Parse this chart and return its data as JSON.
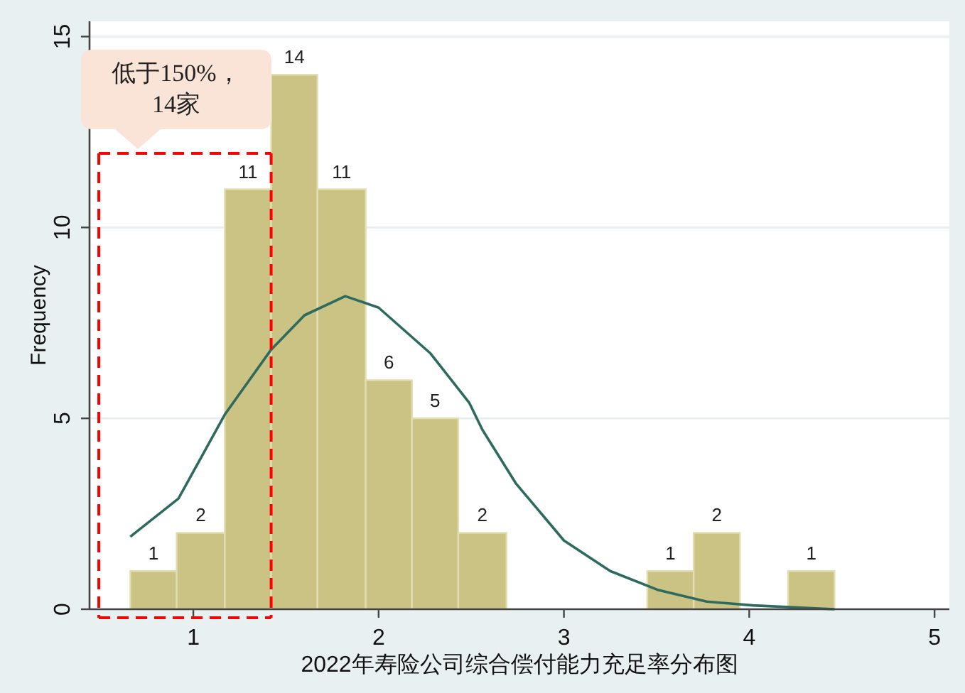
{
  "chart_data": {
    "type": "histogram",
    "xlabel": "2022年寿险公司综合偿付能力充足率分布图",
    "ylabel": "Frequency",
    "bins": [
      0.66,
      0.91,
      1.17,
      1.42,
      1.67,
      1.93,
      2.18,
      2.43,
      2.69,
      3.45,
      3.7,
      3.95,
      4.21,
      4.46
    ],
    "series": [
      {
        "color": "#cbc383",
        "values": [
          1,
          2,
          11,
          14,
          11,
          6,
          5,
          2,
          0,
          1,
          2,
          0,
          1
        ],
        "value_labels": [
          "1",
          "2",
          "11",
          "14",
          "11",
          "6",
          "5",
          "2",
          null,
          "1",
          "2",
          null,
          "1"
        ]
      },
      {
        "type": "line",
        "color": "#2e6b5e",
        "x": [
          0.66,
          0.92,
          1.17,
          1.42,
          1.6,
          1.82,
          2.0,
          2.28,
          2.49,
          2.56,
          2.74,
          3.0,
          3.25,
          3.51,
          3.77,
          4.02,
          4.46
        ],
        "values": [
          1.9,
          2.9,
          5.1,
          6.8,
          7.7,
          8.2,
          7.9,
          6.7,
          5.4,
          4.7,
          3.3,
          1.8,
          1.0,
          0.5,
          0.2,
          0.1,
          0
        ]
      }
    ],
    "xlim": [
      0.44,
      5.08
    ],
    "ylim": [
      0,
      15.4
    ],
    "xticks": [
      1,
      2,
      3,
      4,
      5
    ],
    "yticks": [
      0,
      5,
      10,
      15
    ],
    "grid": "y",
    "ref_lines": [
      {
        "axis": "x",
        "value": 0.49,
        "color": "#ff0000",
        "line_style": "dashed"
      },
      {
        "axis": "x",
        "value": 1.42,
        "color": "#ff0000",
        "line_style": "dashed"
      }
    ],
    "annotations": [
      "低于150%，\n14家"
    ]
  }
}
